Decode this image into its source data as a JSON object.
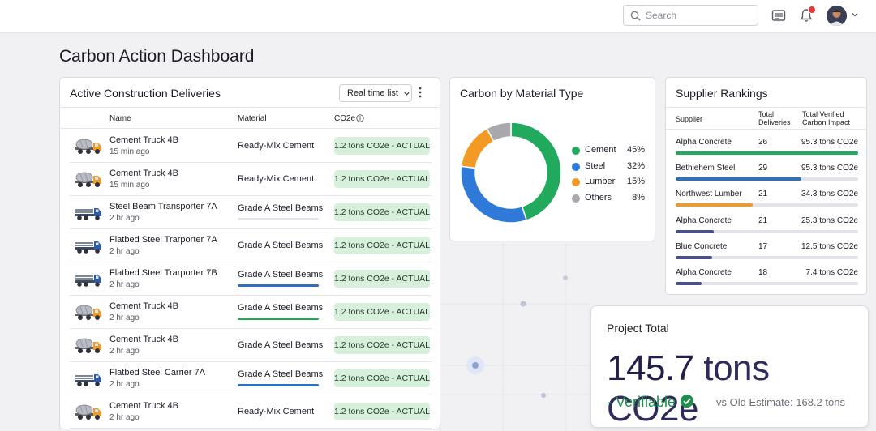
{
  "topbar": {
    "search_placeholder": "Search",
    "icons": [
      "search-icon",
      "list-icon",
      "bell-icon",
      "chevron-down-icon"
    ],
    "notification_color": "#e53935"
  },
  "page": {
    "title": "Carbon Action Dashboard"
  },
  "deliveries": {
    "title": "Active Construction Deliveries",
    "view_select": "Real time list",
    "columns": {
      "name": "Name",
      "material": "Material",
      "co2": "CO2e"
    },
    "rows": [
      {
        "name": "Cement Truck 4B",
        "time": "15 min ago",
        "material": "Ready-Mix Cement",
        "co2": "1.2 tons CO2e - ACTUAL",
        "vehicle": "cement-truck-icon",
        "progress": null,
        "progress_color": null
      },
      {
        "name": "Cement Truck 4B",
        "time": "15 min ago",
        "material": "Ready-Mix Cement",
        "co2": "1.2 tons CO2e - ACTUAL",
        "vehicle": "cement-truck-icon",
        "progress": null,
        "progress_color": null
      },
      {
        "name": "Steel Beam Transporter 7A",
        "time": "2 hr ago",
        "material": "Grade A Steel Beams",
        "co2": "1.2 tons CO2e - ACTUAL",
        "vehicle": "flatbed-truck-icon",
        "progress": 0.0,
        "progress_color": "#2ea05a"
      },
      {
        "name": "Flatbed Steel Trarporter 7A",
        "time": "2 hr ago",
        "material": "Grade A Steel Beams",
        "co2": "1.2 tons CO2e - ACTUAL",
        "vehicle": "flatbed-truck-icon",
        "progress": null,
        "progress_color": null
      },
      {
        "name": "Flatbed Steel Trarporter 7B",
        "time": "2 hr ago",
        "material": "Grade A Steel Beams",
        "co2": "1.2 tons CO2e - ACTUAL",
        "vehicle": "flatbed-truck-icon",
        "progress": 1.0,
        "progress_color": "#2f6fbf"
      },
      {
        "name": "Cement Truck 4B",
        "time": "2 hr ago",
        "material": "Grade A Steel Beams",
        "co2": "1.2 tons CO2e - ACTUAL",
        "vehicle": "cement-truck-icon",
        "progress": 1.0,
        "progress_color": "#2ea05a"
      },
      {
        "name": "Cement Truck 4B",
        "time": "2 hr ago",
        "material": "Grade A Steel Beams",
        "co2": "1.2 tons CO2e - ACTUAL",
        "vehicle": "cement-truck-icon",
        "progress": null,
        "progress_color": null
      },
      {
        "name": "Flatbed Steel Carrier 7A",
        "time": "2 hr ago",
        "material": "Grade A Steel Beams",
        "co2": "1.2 tons CO2e - ACTUAL",
        "vehicle": "flatbed-truck-icon",
        "progress": 1.0,
        "progress_color": "#2f6fbf"
      },
      {
        "name": "Cement Truck 4B",
        "time": "2 hr ago",
        "material": "Ready-Mix Cement",
        "co2": "1.2 tons CO2e - ACTUAL",
        "vehicle": "cement-truck-icon",
        "progress": null,
        "progress_color": null
      }
    ]
  },
  "material_chart": {
    "title": "Carbon by Material Type"
  },
  "chart_data": {
    "type": "pie",
    "title": "Carbon by Material Type",
    "categories": [
      "Cement",
      "Steel",
      "Lumber",
      "Others"
    ],
    "values": [
      45,
      32,
      15,
      8
    ],
    "labels": [
      "45%",
      "32%",
      "15%",
      "8%"
    ],
    "colors": [
      "#21a95e",
      "#2f7ad9",
      "#f39a24",
      "#a8a8ad"
    ],
    "donut": true,
    "legend": "right"
  },
  "suppliers": {
    "title": "Supplier Rankings",
    "columns": {
      "supplier": "Supplier",
      "deliveries": "Total Deliveries",
      "impact": "Total Verified Carbon Impact"
    },
    "rows": [
      {
        "name": "Alpha Concrete",
        "deliveries": "26",
        "impact": "95.3 tons CO2e",
        "share": 1.0,
        "color": "#21a95e"
      },
      {
        "name": "Bethiehem Steel",
        "deliveries": "29",
        "impact": "95.3 tons CO2e",
        "share": 0.69,
        "color": "#2f6fbf"
      },
      {
        "name": "Northwest Lumber",
        "deliveries": "21",
        "impact": "34.3 tons CO2e",
        "share": 0.42,
        "color": "#f39a24"
      },
      {
        "name": "Alpha Concrete",
        "deliveries": "21",
        "impact": "25.3 tons CO2e",
        "share": 0.21,
        "color": "#4b4f8c"
      },
      {
        "name": "Blue Concrete",
        "deliveries": "17",
        "impact": "12.5 tons CO2e",
        "share": 0.2,
        "color": "#4b4f8c"
      },
      {
        "name": "Alpha Concrete",
        "deliveries": "18",
        "impact": "7.4 tons CO2e",
        "share": 0.14,
        "color": "#4b4f8c"
      }
    ]
  },
  "project": {
    "label": "Project Total",
    "value": "145.7",
    "unit": "tons CO2e",
    "verifiable": "- Verifiable",
    "old_estimate": "vs Old Estimate: 168.2 tons"
  }
}
